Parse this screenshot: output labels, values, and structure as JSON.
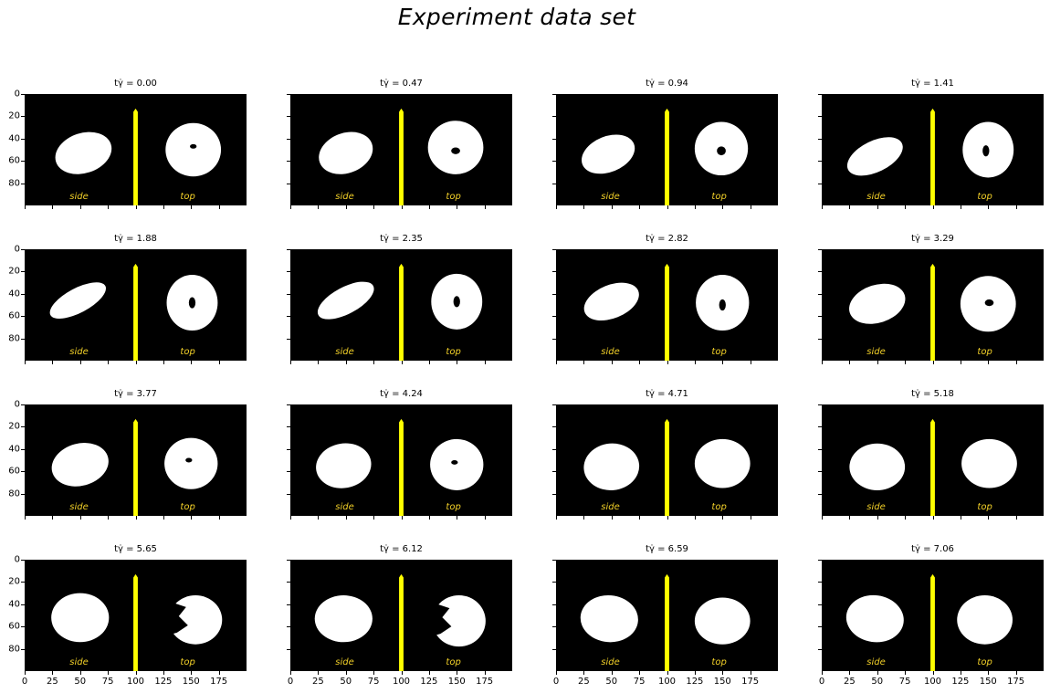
{
  "figure": {
    "title": "Experiment data set",
    "label_side": "side",
    "label_top": "top",
    "panel_title_prefix": "tγ̇ = ",
    "y_ticks": [
      "0",
      "20",
      "40",
      "60",
      "80"
    ],
    "x_ticks": [
      "0",
      "25",
      "50",
      "75",
      "100",
      "125",
      "150",
      "175"
    ],
    "y_range": [
      0,
      100
    ],
    "x_range": [
      0,
      200
    ],
    "image_colors": {
      "background": "#000000",
      "shape": "#ffffff",
      "divider": "#ffff00",
      "label": "#f2d028"
    },
    "panels": [
      {
        "t": "0.00",
        "side": {
          "cx": 53,
          "cy": 53,
          "rx": 26,
          "ry": 18,
          "rot": -18
        },
        "top": {
          "cx": 152,
          "cy": 50,
          "rx": 25,
          "ry": 24,
          "rot": 0,
          "hole": [
            152,
            47,
            3,
            2
          ]
        }
      },
      {
        "t": "0.47",
        "side": {
          "cx": 50,
          "cy": 53,
          "rx": 25,
          "ry": 18,
          "rot": -20
        },
        "top": {
          "cx": 149,
          "cy": 48,
          "rx": 25,
          "ry": 24,
          "rot": 0,
          "hole": [
            149,
            51,
            4,
            3
          ]
        }
      },
      {
        "t": "0.94",
        "side": {
          "cx": 47,
          "cy": 54,
          "rx": 25,
          "ry": 16,
          "rot": -22
        },
        "top": {
          "cx": 149,
          "cy": 49,
          "rx": 24,
          "ry": 24,
          "rot": 0,
          "hole": [
            149,
            51,
            4,
            4
          ]
        }
      },
      {
        "t": "1.41",
        "side": {
          "cx": 48,
          "cy": 56,
          "rx": 27,
          "ry": 14,
          "rot": -26
        },
        "top": {
          "cx": 150,
          "cy": 50,
          "rx": 23,
          "ry": 25,
          "rot": 0,
          "hole": [
            148,
            51,
            3,
            5
          ]
        }
      },
      {
        "t": "1.88",
        "side": {
          "cx": 48,
          "cy": 46,
          "rx": 28,
          "ry": 11,
          "rot": -28
        },
        "top": {
          "cx": 151,
          "cy": 48,
          "rx": 23,
          "ry": 25,
          "rot": 0,
          "hole": [
            151,
            48,
            3,
            5
          ]
        }
      },
      {
        "t": "2.35",
        "side": {
          "cx": 50,
          "cy": 46,
          "rx": 28,
          "ry": 12,
          "rot": -28
        },
        "top": {
          "cx": 150,
          "cy": 47,
          "rx": 23,
          "ry": 25,
          "rot": 0,
          "hole": [
            150,
            47,
            3,
            5
          ]
        }
      },
      {
        "t": "2.82",
        "side": {
          "cx": 50,
          "cy": 47,
          "rx": 26,
          "ry": 15,
          "rot": -22
        },
        "top": {
          "cx": 150,
          "cy": 48,
          "rx": 24,
          "ry": 25,
          "rot": 0,
          "hole": [
            150,
            50,
            3,
            5
          ]
        }
      },
      {
        "t": "3.29",
        "side": {
          "cx": 50,
          "cy": 49,
          "rx": 26,
          "ry": 17,
          "rot": -18
        },
        "top": {
          "cx": 150,
          "cy": 49,
          "rx": 25,
          "ry": 25,
          "rot": 0,
          "hole": [
            151,
            48,
            4,
            3
          ]
        }
      },
      {
        "t": "3.77",
        "side": {
          "cx": 50,
          "cy": 54,
          "rx": 26,
          "ry": 19,
          "rot": -15
        },
        "top": {
          "cx": 150,
          "cy": 53,
          "rx": 24,
          "ry": 23,
          "rot": 0,
          "hole": [
            148,
            50,
            3,
            2
          ]
        }
      },
      {
        "t": "4.24",
        "side": {
          "cx": 48,
          "cy": 55,
          "rx": 25,
          "ry": 20,
          "rot": -10
        },
        "top": {
          "cx": 150,
          "cy": 54,
          "rx": 24,
          "ry": 23,
          "rot": 0,
          "hole": [
            148,
            52,
            3,
            2
          ]
        }
      },
      {
        "t": "4.71",
        "side": {
          "cx": 50,
          "cy": 56,
          "rx": 25,
          "ry": 21,
          "rot": -5
        },
        "top": {
          "cx": 150,
          "cy": 53,
          "rx": 25,
          "ry": 22,
          "rot": 0
        }
      },
      {
        "t": "5.18",
        "side": {
          "cx": 50,
          "cy": 56,
          "rx": 25,
          "ry": 21,
          "rot": 0
        },
        "top": {
          "cx": 151,
          "cy": 53,
          "rx": 25,
          "ry": 22,
          "rot": 0
        }
      },
      {
        "t": "5.65",
        "side": {
          "cx": 50,
          "cy": 52,
          "rx": 26,
          "ry": 22,
          "rot": 0
        },
        "top": {
          "cx": 154,
          "cy": 54,
          "rx": 24,
          "ry": 22,
          "rot": 0,
          "bite": true
        }
      },
      {
        "t": "6.12",
        "side": {
          "cx": 48,
          "cy": 53,
          "rx": 26,
          "ry": 21,
          "rot": 0
        },
        "top": {
          "cx": 152,
          "cy": 55,
          "rx": 24,
          "ry": 23,
          "rot": 0,
          "bite": true
        }
      },
      {
        "t": "6.59",
        "side": {
          "cx": 48,
          "cy": 53,
          "rx": 26,
          "ry": 21,
          "rot": 5
        },
        "top": {
          "cx": 150,
          "cy": 55,
          "rx": 25,
          "ry": 21,
          "rot": 0
        }
      },
      {
        "t": "7.06",
        "side": {
          "cx": 48,
          "cy": 53,
          "rx": 26,
          "ry": 21,
          "rot": 8
        },
        "top": {
          "cx": 147,
          "cy": 54,
          "rx": 25,
          "ry": 22,
          "rot": 0
        }
      }
    ]
  }
}
